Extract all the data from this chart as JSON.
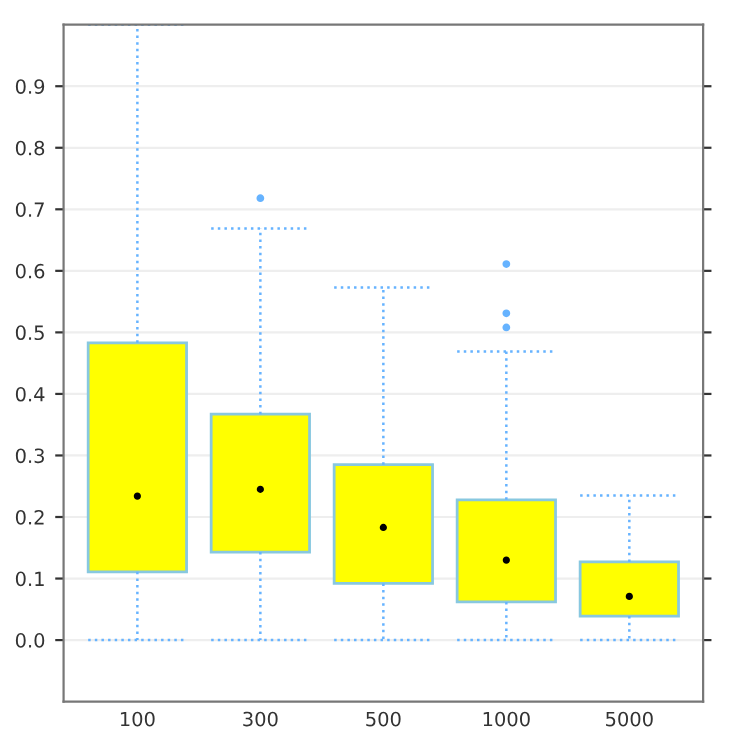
{
  "chart_data": {
    "type": "box",
    "categories": [
      "100",
      "300",
      "500",
      "1000",
      "5000"
    ],
    "boxes": [
      {
        "low": 0.0,
        "q1": 0.111,
        "median": 0.234,
        "q3": 0.483,
        "high": 1.0
      },
      {
        "low": 0.0,
        "q1": 0.143,
        "median": 0.245,
        "q3": 0.367,
        "high": 0.669,
        "outliers": [
          0.718
        ]
      },
      {
        "low": 0.0,
        "q1": 0.092,
        "median": 0.183,
        "q3": 0.285,
        "high": 0.573
      },
      {
        "low": 0.0,
        "q1": 0.062,
        "median": 0.13,
        "q3": 0.228,
        "high": 0.469,
        "outliers": [
          0.611,
          0.531,
          0.508
        ]
      },
      {
        "low": 0.0,
        "q1": 0.039,
        "median": 0.071,
        "q3": 0.127,
        "high": 0.235
      }
    ],
    "color": "#ffff00",
    "ylim": [
      -0.1,
      1.0
    ],
    "yticks": [
      {
        "value": 0.0,
        "label": "0.0"
      },
      0.1,
      0.2,
      0.3,
      0.4,
      0.5,
      0.6,
      0.7,
      0.8,
      0.9
    ],
    "grid": "y"
  }
}
